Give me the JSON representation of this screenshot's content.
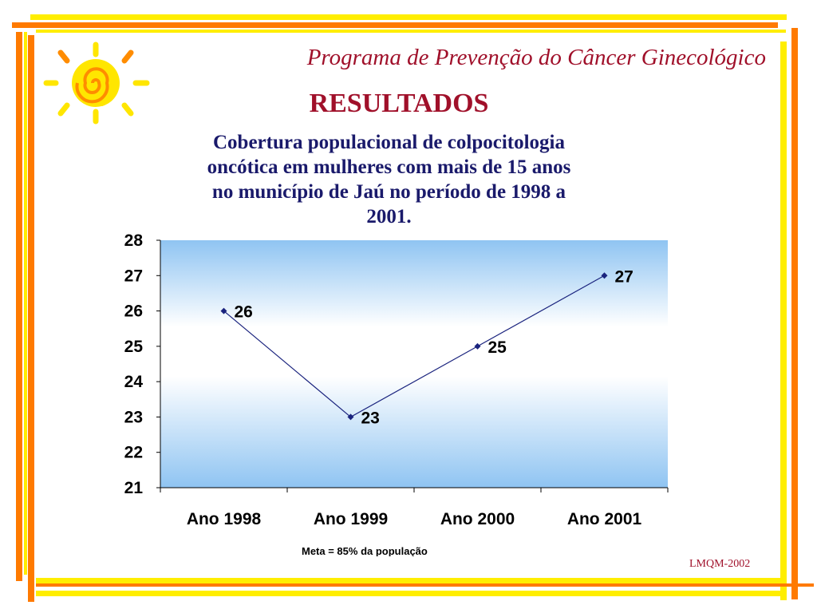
{
  "header": {
    "title": "Programa de Prevenção do Câncer Ginecológico",
    "section": "RESULTADOS"
  },
  "chart_data": {
    "type": "line",
    "title": "Cobertura populacional de colpocitologia oncótica em mulheres com mais de 15 anos no município de Jaú no período de 1998 a 2001.",
    "title_lines": [
      "Cobertura populacional de colpocitologia",
      "oncótica em mulheres com mais de 15 anos",
      "no município de Jaú no período de 1998 a",
      "2001."
    ],
    "categories": [
      "Ano 1998",
      "Ano 1999",
      "Ano 2000",
      "Ano 2001"
    ],
    "values": [
      26,
      23,
      25,
      27
    ],
    "data_labels": [
      "26",
      "23",
      "25",
      "27"
    ],
    "ylim": [
      21,
      28
    ],
    "yticks": [
      21,
      22,
      23,
      24,
      25,
      26,
      27,
      28
    ],
    "xlabel": "",
    "ylabel": "",
    "grid": false,
    "legend": "none",
    "line_color": "#1a237e",
    "plot_background": "gradient light blue"
  },
  "footnote": "Meta = 85% da população",
  "author": "LMQM-2002",
  "colors": {
    "title": "#a0102a",
    "chart_title": "#1a1a6b",
    "border_yellow": "#ffee00",
    "border_orange": "#ff7a00",
    "sun_yellow": "#ffe600",
    "sun_orange": "#ff8c00"
  },
  "icons": {
    "logo": "sun-spiral-logo"
  }
}
